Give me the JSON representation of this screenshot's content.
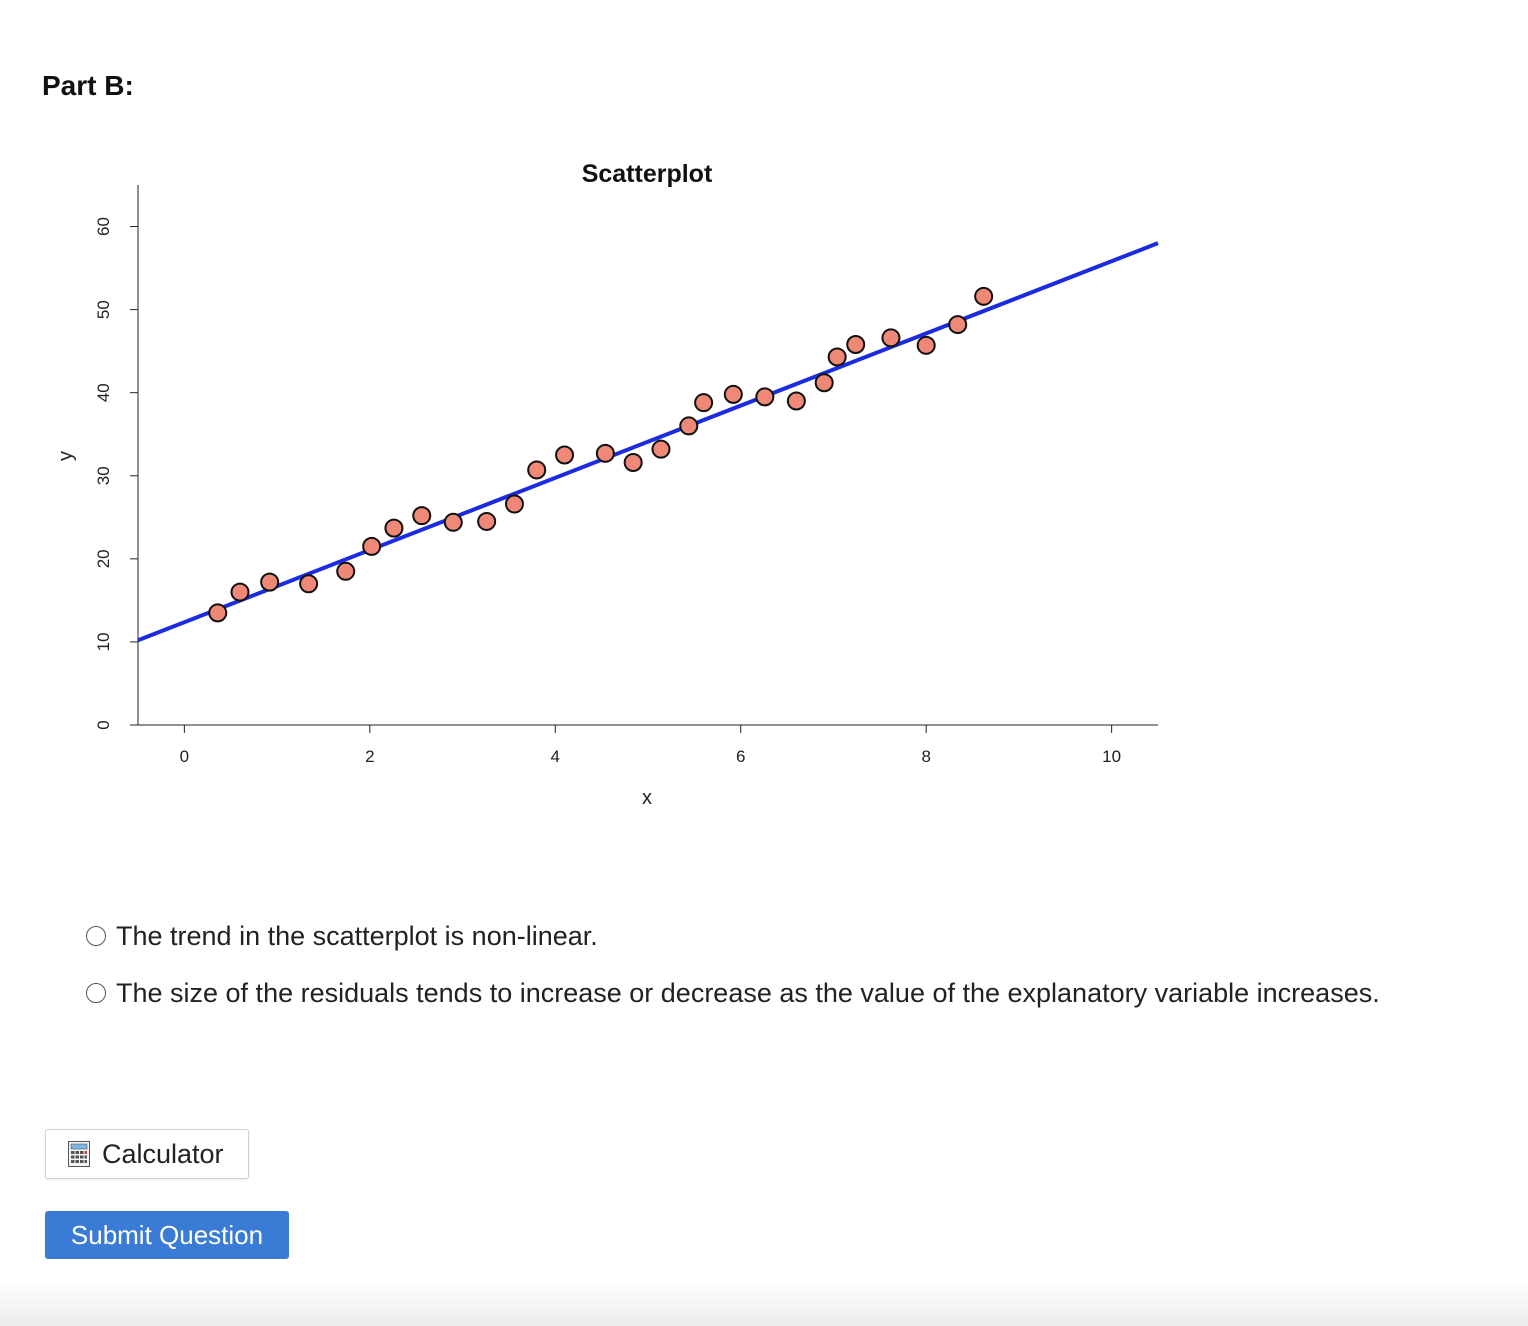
{
  "part_heading": "Part B:",
  "chart_data": {
    "type": "scatter",
    "title": "Scatterplot",
    "xlabel": "x",
    "ylabel": "y",
    "xlim": [
      -0.5,
      10.5
    ],
    "ylim": [
      0,
      65
    ],
    "x_ticks": [
      0,
      2,
      4,
      6,
      8,
      10
    ],
    "y_ticks": [
      0,
      10,
      20,
      30,
      40,
      50,
      60
    ],
    "x_tick_labels": [
      "0",
      "2",
      "4",
      "6",
      "8",
      "10"
    ],
    "y_tick_labels": [
      "0",
      "10",
      "20",
      "30",
      "40",
      "50",
      "60"
    ],
    "grid": false,
    "point_color": "#f08878",
    "point_stroke": "#111111",
    "line_color": "#1a2be0",
    "points": [
      {
        "x": 0.36,
        "y": 13.5
      },
      {
        "x": 0.6,
        "y": 16.0
      },
      {
        "x": 0.92,
        "y": 17.2
      },
      {
        "x": 1.34,
        "y": 17.0
      },
      {
        "x": 1.74,
        "y": 18.5
      },
      {
        "x": 2.02,
        "y": 21.5
      },
      {
        "x": 2.26,
        "y": 23.7
      },
      {
        "x": 2.56,
        "y": 25.2
      },
      {
        "x": 2.9,
        "y": 24.4
      },
      {
        "x": 3.26,
        "y": 24.5
      },
      {
        "x": 3.56,
        "y": 26.6
      },
      {
        "x": 3.8,
        "y": 30.7
      },
      {
        "x": 4.1,
        "y": 32.5
      },
      {
        "x": 4.54,
        "y": 32.7
      },
      {
        "x": 4.84,
        "y": 31.6
      },
      {
        "x": 5.14,
        "y": 33.2
      },
      {
        "x": 5.44,
        "y": 36.0
      },
      {
        "x": 5.6,
        "y": 38.8
      },
      {
        "x": 5.92,
        "y": 39.8
      },
      {
        "x": 6.26,
        "y": 39.5
      },
      {
        "x": 6.6,
        "y": 39.0
      },
      {
        "x": 6.9,
        "y": 41.2
      },
      {
        "x": 7.04,
        "y": 44.3
      },
      {
        "x": 7.24,
        "y": 45.8
      },
      {
        "x": 7.62,
        "y": 46.6
      },
      {
        "x": 8.0,
        "y": 45.7
      },
      {
        "x": 8.34,
        "y": 48.2
      },
      {
        "x": 8.62,
        "y": 51.6
      }
    ],
    "regression_line": {
      "x": [
        -0.5,
        10.5
      ],
      "y": [
        10.2,
        58.0
      ]
    }
  },
  "options": [
    {
      "label": "The trend in the scatterplot is non-linear."
    },
    {
      "label": "The size of the residuals tends to increase or decrease as the value of the explanatory variable increases."
    }
  ],
  "calculator_button": {
    "label": "Calculator",
    "icon": "calculator-icon"
  },
  "submit_button": {
    "label": "Submit Question",
    "color": "#3a7bd5"
  }
}
